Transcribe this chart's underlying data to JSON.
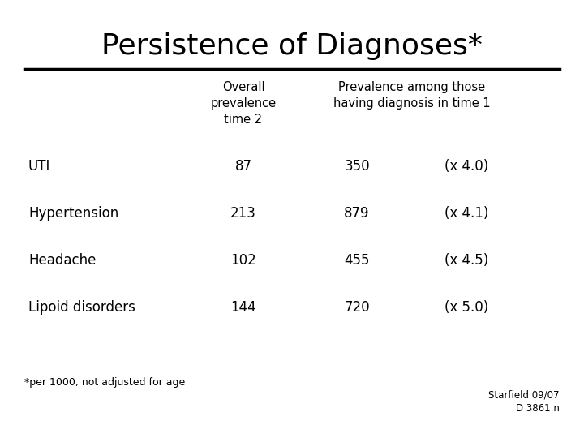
{
  "title": "Persistence of Diagnoses*",
  "background_color": "#ffffff",
  "header_col1": "Overall\nprevalence\ntime 2",
  "header_col2": "Prevalence among those\nhaving diagnosis in time 1",
  "rows": [
    {
      "label": "UTI",
      "val1": "87",
      "val2": "350",
      "val3": "(x 4.0)"
    },
    {
      "label": "Hypertension",
      "val1": "213",
      "val2": "879",
      "val3": "(x 4.1)"
    },
    {
      "label": "Headache",
      "val1": "102",
      "val2": "455",
      "val3": "(x 4.5)"
    },
    {
      "label": "Lipoid disorders",
      "val1": "144",
      "val2": "720",
      "val3": "(x 5.0)"
    }
  ],
  "footnote": "*per 1000, not adjusted for age",
  "credit": "Starfield 09/07\nD 3861 n",
  "title_fontsize": 26,
  "header_fontsize": 10.5,
  "row_fontsize": 12,
  "footnote_fontsize": 9,
  "credit_fontsize": 8.5
}
